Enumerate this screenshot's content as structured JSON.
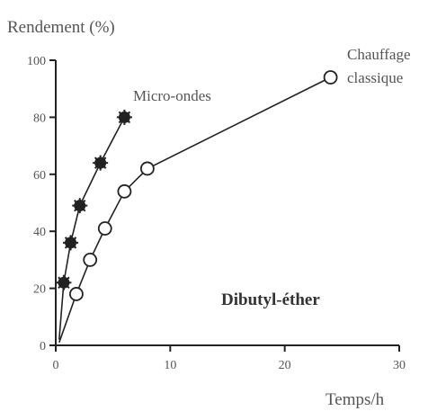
{
  "chart_data": {
    "type": "scatter",
    "xlabel": "Temps/h",
    "ylabel": "Rendement (%)",
    "xlim": [
      0,
      30
    ],
    "ylim": [
      0,
      100
    ],
    "xticks": [
      0,
      10,
      20,
      30
    ],
    "yticks": [
      0,
      20,
      40,
      60,
      80,
      100
    ],
    "grid": false,
    "annotation": "Dibutyl-éther",
    "series": [
      {
        "name": "Micro-ondes",
        "marker": "filled-star",
        "color": "#222222",
        "points": [
          [
            0.3,
            2
          ],
          [
            0.7,
            22
          ],
          [
            1.3,
            36
          ],
          [
            2.1,
            49
          ],
          [
            3.9,
            64
          ],
          [
            6.0,
            80
          ]
        ]
      },
      {
        "name": "Chauffage classique",
        "name_lines": [
          "Chauffage",
          "classique"
        ],
        "marker": "open-circle",
        "color": "#222222",
        "points": [
          [
            0.3,
            1
          ],
          [
            1.8,
            18
          ],
          [
            3.0,
            30
          ],
          [
            4.3,
            41
          ],
          [
            6.0,
            54
          ],
          [
            8.0,
            62
          ],
          [
            24.0,
            94
          ]
        ]
      }
    ]
  }
}
